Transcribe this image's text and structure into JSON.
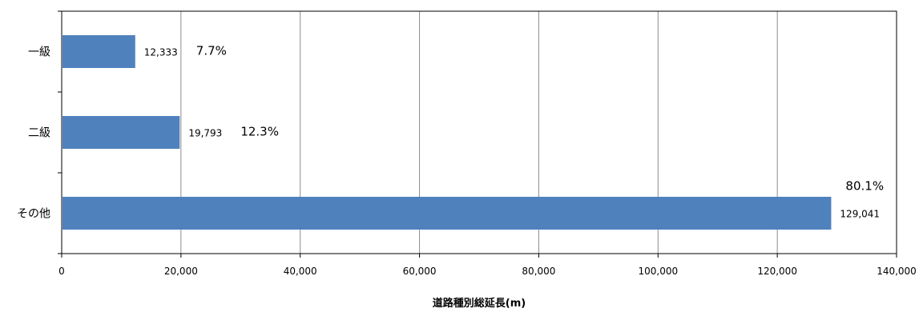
{
  "chart_data": {
    "type": "bar",
    "orientation": "horizontal",
    "categories": [
      "一級",
      "二級",
      "その他"
    ],
    "values": [
      12333,
      19793,
      129041
    ],
    "value_labels": [
      "12,333",
      "19,793",
      "129,041"
    ],
    "percent_labels": [
      "7.7%",
      "12.3%",
      "80.1%"
    ],
    "xlabel": "道路種別総延長(m)",
    "xlim": [
      0,
      140000
    ],
    "xticks": [
      0,
      20000,
      40000,
      60000,
      80000,
      100000,
      120000,
      140000
    ],
    "xtick_labels": [
      "0",
      "20,000",
      "40,000",
      "60,000",
      "80,000",
      "100,000",
      "120,000",
      "140,000"
    ],
    "grid": "vertical",
    "legend": "none",
    "bar_color": "#4f81bd"
  }
}
